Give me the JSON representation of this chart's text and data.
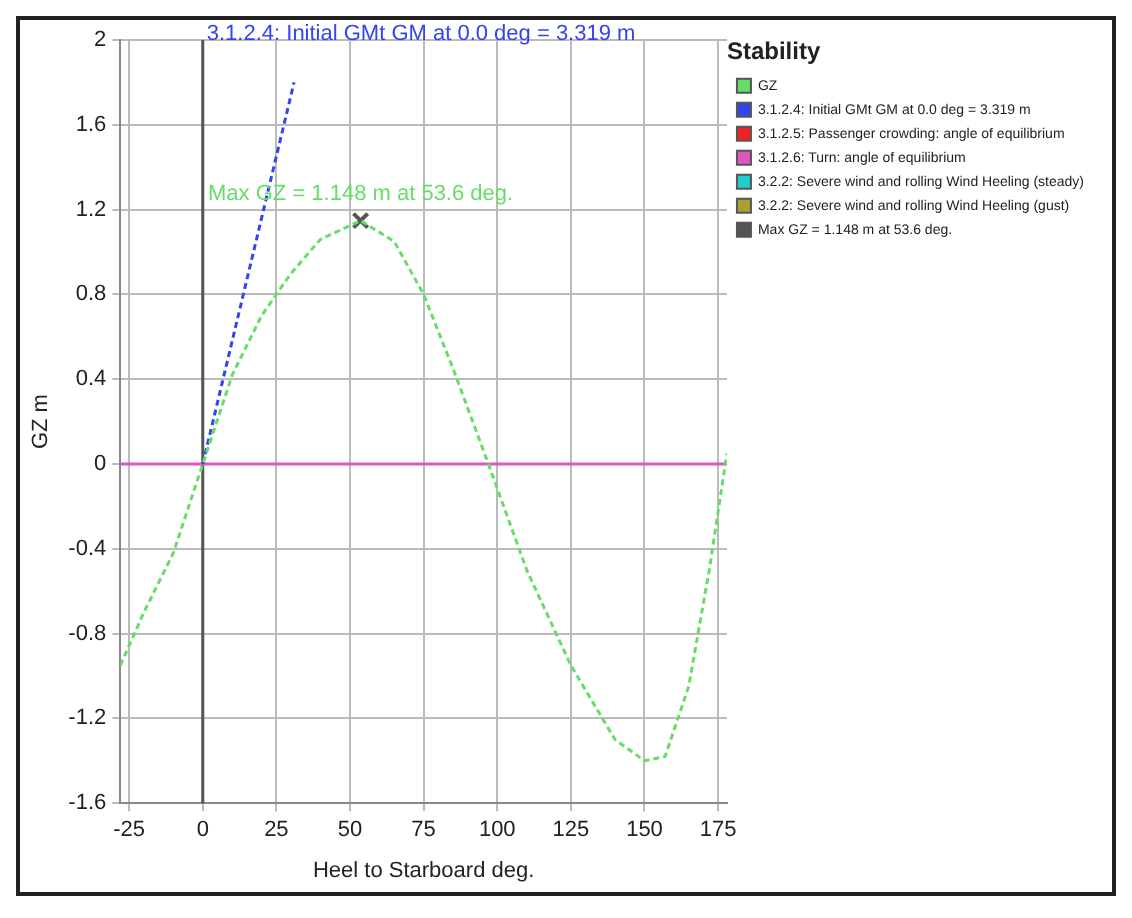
{
  "chart_data": {
    "type": "line",
    "xlabel": "Heel to Starboard deg.",
    "ylabel": "GZ m",
    "legend_title": "Stability",
    "legend": "right",
    "grid": true,
    "xlim": [
      -28,
      178
    ],
    "xticks": [
      -25,
      0,
      25,
      50,
      75,
      100,
      125,
      150,
      175
    ],
    "ylim": [
      -1.6,
      2
    ],
    "yticks": [
      -1.6,
      -1.2,
      -0.8,
      -0.4,
      0,
      0.4,
      0.8,
      1.2,
      1.6,
      2
    ],
    "series": [
      {
        "name": "GZ",
        "color": "#66dd66",
        "line_style": "dashed",
        "marker": "none",
        "x": [
          -28,
          -20,
          -10,
          0,
          10,
          20,
          30,
          40,
          53.6,
          65,
          75,
          85,
          97,
          110,
          125,
          140,
          150,
          157,
          165,
          172,
          178
        ],
        "values": [
          -0.95,
          -0.7,
          -0.42,
          0,
          0.42,
          0.7,
          0.9,
          1.06,
          1.148,
          1.05,
          0.8,
          0.45,
          0,
          -0.5,
          -0.95,
          -1.3,
          -1.4,
          -1.38,
          -1.05,
          -0.5,
          0.05
        ]
      },
      {
        "name": "3.1.2.4: Initial GMt GM at 0.0 deg = 3.319 m",
        "color": "#3344ee",
        "line_style": "dashed",
        "marker": "none",
        "x": [
          0,
          31
        ],
        "values": [
          0,
          1.8
        ]
      },
      {
        "name": "3.1.2.5: Passenger crowding: angle of equilibrium",
        "color": "#ee2222",
        "line_style": "solid",
        "marker": "none"
      },
      {
        "name": "3.1.2.6: Turn: angle of equilibrium",
        "color": "#e055c0",
        "line_style": "solid",
        "marker": "none",
        "x": [
          -28,
          178
        ],
        "values": [
          0,
          0
        ]
      },
      {
        "name": "3.2.2: Severe wind and rolling Wind Heeling (steady)",
        "color": "#22cccc",
        "line_style": "solid",
        "marker": "none"
      },
      {
        "name": "3.2.2: Severe wind and rolling Wind Heeling (gust)",
        "color": "#aaa030",
        "line_style": "solid",
        "marker": "none"
      },
      {
        "name": "Max GZ = 1.148 m at 53.6 deg.",
        "type": "scatter",
        "color": "#555555",
        "marker": "cross",
        "x": [
          53.6
        ],
        "values": [
          1.148
        ]
      }
    ],
    "ref_lines": [
      {
        "axis": "x",
        "value": 0,
        "color": "#555555",
        "line_style": "solid"
      }
    ],
    "annotations": [
      {
        "text": "3.1.2.4: Initial GMt GM at 0.0 deg = 3.319 m",
        "x": 0,
        "y": 1.9
      },
      {
        "text": "Max GZ = 1.148 m at 53.6 deg.",
        "x": 53.6,
        "y": 1.148
      }
    ]
  }
}
